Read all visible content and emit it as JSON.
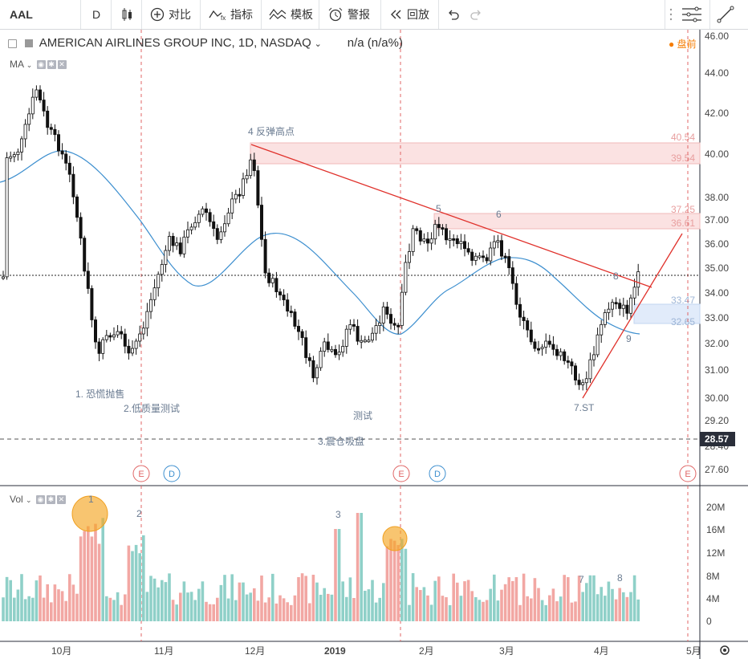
{
  "toolbar": {
    "symbol": "AAL",
    "interval": "D",
    "compare_label": "对比",
    "indicators_label": "指标",
    "templates_label": "模板",
    "alert_label": "警报",
    "replay_label": "回放"
  },
  "legend": {
    "title": "AMERICAN AIRLINES GROUP INC, 1D, NASDAQ",
    "value": "n/a (n/a%)",
    "ma_label": "MA",
    "vol_label": "Vol",
    "premarket_label": "盘前"
  },
  "price_axis": {
    "ticks": [
      "46.00",
      "44.00",
      "42.00",
      "40.00",
      "38.00",
      "37.00",
      "36.00",
      "35.00",
      "34.00",
      "33.00",
      "32.00",
      "31.00",
      "30.00",
      "29.20",
      "28.40",
      "27.60"
    ],
    "last_price": "28.57"
  },
  "volume_axis": {
    "ticks": [
      "20M",
      "16M",
      "12M",
      "8M",
      "4M",
      "0"
    ]
  },
  "time_axis": {
    "ticks": [
      "10月",
      "11月",
      "12月",
      "2019",
      "2月",
      "3月",
      "4月",
      "5月"
    ]
  },
  "zones": [
    {
      "top": "40.54",
      "bottom": "39.54"
    },
    {
      "top": "37.25",
      "bottom": "36.61"
    },
    {
      "top": "33.47",
      "bottom": "32.65"
    }
  ],
  "annotations": {
    "a1": "1. 恐慌抛售",
    "a2": "2.低质量测试",
    "a3": "3.震仓吸盘",
    "a4": "4 反弹高点",
    "test": "测试",
    "n5": "5",
    "n6": "6",
    "n7": "7.ST",
    "n8": "8",
    "n9": "9"
  },
  "volume_annotations": {
    "v1": "1",
    "v2": "2",
    "v3": "3",
    "v7": "7",
    "v8": "8"
  },
  "events": {
    "e": "E",
    "d": "D"
  },
  "colors": {
    "up": "#8fd0c8",
    "down": "#f2a7a3",
    "ma": "#3d8fcf",
    "trend": "#e0312b",
    "zone_red": "#f9d6d6",
    "zone_blue": "#dbe8f9"
  }
}
